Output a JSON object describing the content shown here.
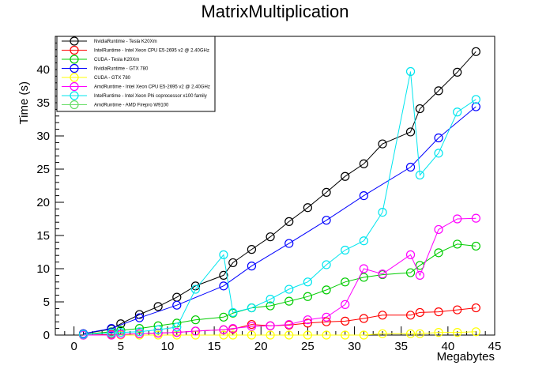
{
  "chart_data": {
    "type": "line",
    "title": "MatrixMultiplication",
    "xlabel": "Megabytes",
    "ylabel": "Time (s)",
    "xlim": [
      -2,
      45
    ],
    "ylim": [
      0,
      45
    ],
    "x_ticks": [
      0,
      5,
      10,
      15,
      20,
      25,
      30,
      35,
      40,
      45
    ],
    "y_ticks": [
      0,
      5,
      10,
      15,
      20,
      25,
      30,
      35,
      40
    ],
    "grid": false,
    "legend_position": "top-left",
    "marker": "open-circle",
    "series": [
      {
        "name": "NvidiaRuntime - Tesla K20Xm",
        "color": "#000000",
        "x": [
          1,
          4,
          5,
          7,
          9,
          11,
          13,
          16,
          17,
          19,
          21,
          23,
          25,
          27,
          29,
          31,
          33,
          36,
          37,
          39,
          41,
          43
        ],
        "y": [
          0.2,
          0.9,
          1.7,
          3.1,
          4.3,
          5.7,
          7.4,
          9.0,
          10.9,
          12.9,
          14.8,
          17.1,
          19.2,
          21.5,
          23.9,
          25.8,
          28.8,
          30.6,
          34.1,
          36.8,
          39.6,
          42.7
        ]
      },
      {
        "name": "IntelRuntime - Intel Xeon CPU E5-2695 v2 @ 2.40GHz",
        "color": "#ff0000",
        "x": [
          1,
          4,
          5,
          7,
          9,
          11,
          13,
          16,
          17,
          19,
          21,
          23,
          25,
          27,
          29,
          31,
          33,
          36,
          37,
          39,
          41,
          43
        ],
        "y": [
          0.0,
          0.1,
          0.1,
          0.2,
          0.3,
          0.4,
          0.6,
          0.8,
          0.9,
          1.6,
          1.4,
          1.5,
          1.8,
          2.0,
          2.1,
          2.5,
          3.0,
          3.0,
          3.4,
          3.5,
          3.8,
          4.1
        ]
      },
      {
        "name": "CUDA - Tesla K20Xm",
        "color": "#00cc00",
        "x": [
          1,
          4,
          5,
          7,
          9,
          11,
          13,
          16,
          17,
          19,
          21,
          23,
          25,
          27,
          29,
          31,
          33,
          36,
          37,
          39,
          41,
          43
        ],
        "y": [
          0.1,
          0.5,
          0.7,
          1.0,
          1.4,
          1.8,
          2.3,
          2.7,
          3.3,
          4.1,
          4.4,
          5.1,
          5.8,
          6.8,
          8.0,
          8.7,
          9.1,
          9.4,
          10.5,
          12.4,
          13.7,
          13.4
        ]
      },
      {
        "name": "NvidiaRuntime - GTX 780",
        "color": "#0000ff",
        "x": [
          1,
          4,
          7,
          11,
          16,
          19,
          23,
          27,
          31,
          36,
          39,
          43
        ],
        "y": [
          0.2,
          1.0,
          2.6,
          4.5,
          7.4,
          10.4,
          13.8,
          17.3,
          21.0,
          25.3,
          29.7,
          34.4
        ]
      },
      {
        "name": "CUDA - GTX 780",
        "color": "#ffff00",
        "x": [
          1,
          4,
          5,
          7,
          9,
          11,
          13,
          16,
          17,
          19,
          21,
          23,
          25,
          27,
          29,
          31,
          33,
          36,
          37,
          39,
          41,
          43
        ],
        "y": [
          0.0,
          0.0,
          0.0,
          0.0,
          0.0,
          0.0,
          0.0,
          0.0,
          0.0,
          0.0,
          0.0,
          0.0,
          0.0,
          0.0,
          0.0,
          0.0,
          0.2,
          0.2,
          0.2,
          0.4,
          0.4,
          0.5
        ]
      },
      {
        "name": "AmdRuntime - Intel Xeon CPU E5-2695 v2 @ 2.40GHz",
        "color": "#ff00ff",
        "x": [
          1,
          4,
          5,
          7,
          9,
          11,
          13,
          16,
          17,
          19,
          21,
          23,
          25,
          27,
          29,
          31,
          33,
          36,
          37,
          39,
          41,
          43
        ],
        "y": [
          0.0,
          0.0,
          0.1,
          0.2,
          0.3,
          0.4,
          0.6,
          0.8,
          1.0,
          1.3,
          1.4,
          1.6,
          2.3,
          2.7,
          4.6,
          10.0,
          9.2,
          12.1,
          9.0,
          15.9,
          17.5,
          17.6
        ]
      },
      {
        "name": "IntelRuntime - Intel Xeon Phi coprocessor x100 family",
        "color": "#00e5ee",
        "x": [
          1,
          4,
          5,
          7,
          9,
          11,
          13,
          16,
          17,
          19,
          21,
          23,
          25,
          27,
          29,
          31,
          33,
          36,
          37,
          39,
          41,
          43
        ],
        "y": [
          0.1,
          0.3,
          0.4,
          0.5,
          0.8,
          1.2,
          6.9,
          12.1,
          3.4,
          4.1,
          5.4,
          6.9,
          8.0,
          10.6,
          12.8,
          14.2,
          18.5,
          39.7,
          24.1,
          27.4,
          33.6,
          35.5
        ]
      },
      {
        "name": "AmdRuntime - AMD Firepro W9100",
        "color": "#66dd66",
        "x": [],
        "y": []
      }
    ]
  }
}
